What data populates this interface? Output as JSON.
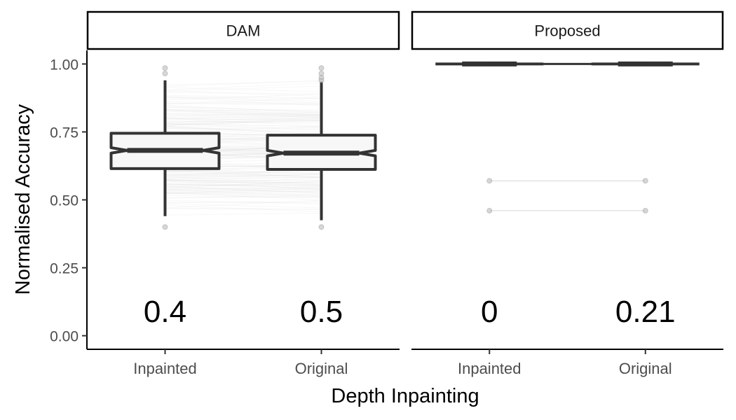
{
  "chart_data": {
    "type": "boxplot",
    "xlabel": "Depth Inpainting",
    "ylabel": "Normalised Accuracy",
    "ylim": [
      -0.05,
      1.05
    ],
    "yticks": [
      0.0,
      0.25,
      0.5,
      0.75,
      1.0
    ],
    "ytick_labels": [
      "0.00",
      "0.25",
      "0.50",
      "0.75",
      "1.00"
    ],
    "categories": [
      "Inpainted",
      "Original"
    ],
    "grid": false,
    "colors": {
      "box_stroke": "#333333",
      "box_fill": "#f7f7f7",
      "points": "#bdbdbd",
      "lines": "#bfbfbf"
    },
    "panels": [
      {
        "name": "DAM",
        "boxes": [
          {
            "category": "Inpainted",
            "q1": 0.615,
            "median": 0.682,
            "q3": 0.745,
            "notch_low": 0.672,
            "notch_high": 0.692,
            "whisker_low": 0.44,
            "whisker_high": 0.94,
            "outliers": [
              0.4,
              0.965,
              0.985
            ],
            "annotation": "0.4"
          },
          {
            "category": "Original",
            "q1": 0.612,
            "median": 0.672,
            "q3": 0.738,
            "notch_low": 0.662,
            "notch_high": 0.682,
            "whisker_low": 0.425,
            "whisker_high": 0.935,
            "outliers": [
              0.4,
              0.94,
              0.95,
              0.965,
              0.985
            ],
            "annotation": "0.5"
          }
        ]
      },
      {
        "name": "Proposed",
        "boxes": [
          {
            "category": "Inpainted",
            "q1": 1.0,
            "median": 1.0,
            "q3": 1.0,
            "notch_low": 1.0,
            "notch_high": 1.0,
            "whisker_low": 1.0,
            "whisker_high": 1.0,
            "outliers": [
              0.46,
              0.57
            ],
            "annotation": "0"
          },
          {
            "category": "Original",
            "q1": 1.0,
            "median": 1.0,
            "q3": 1.0,
            "notch_low": 1.0,
            "notch_high": 1.0,
            "whisker_low": 1.0,
            "whisker_high": 1.0,
            "outliers": [
              0.46,
              0.57
            ],
            "annotation": "0.21"
          }
        ],
        "paired_lines": [
          [
            0.46,
            0.46
          ],
          [
            0.57,
            0.57
          ]
        ]
      }
    ]
  }
}
